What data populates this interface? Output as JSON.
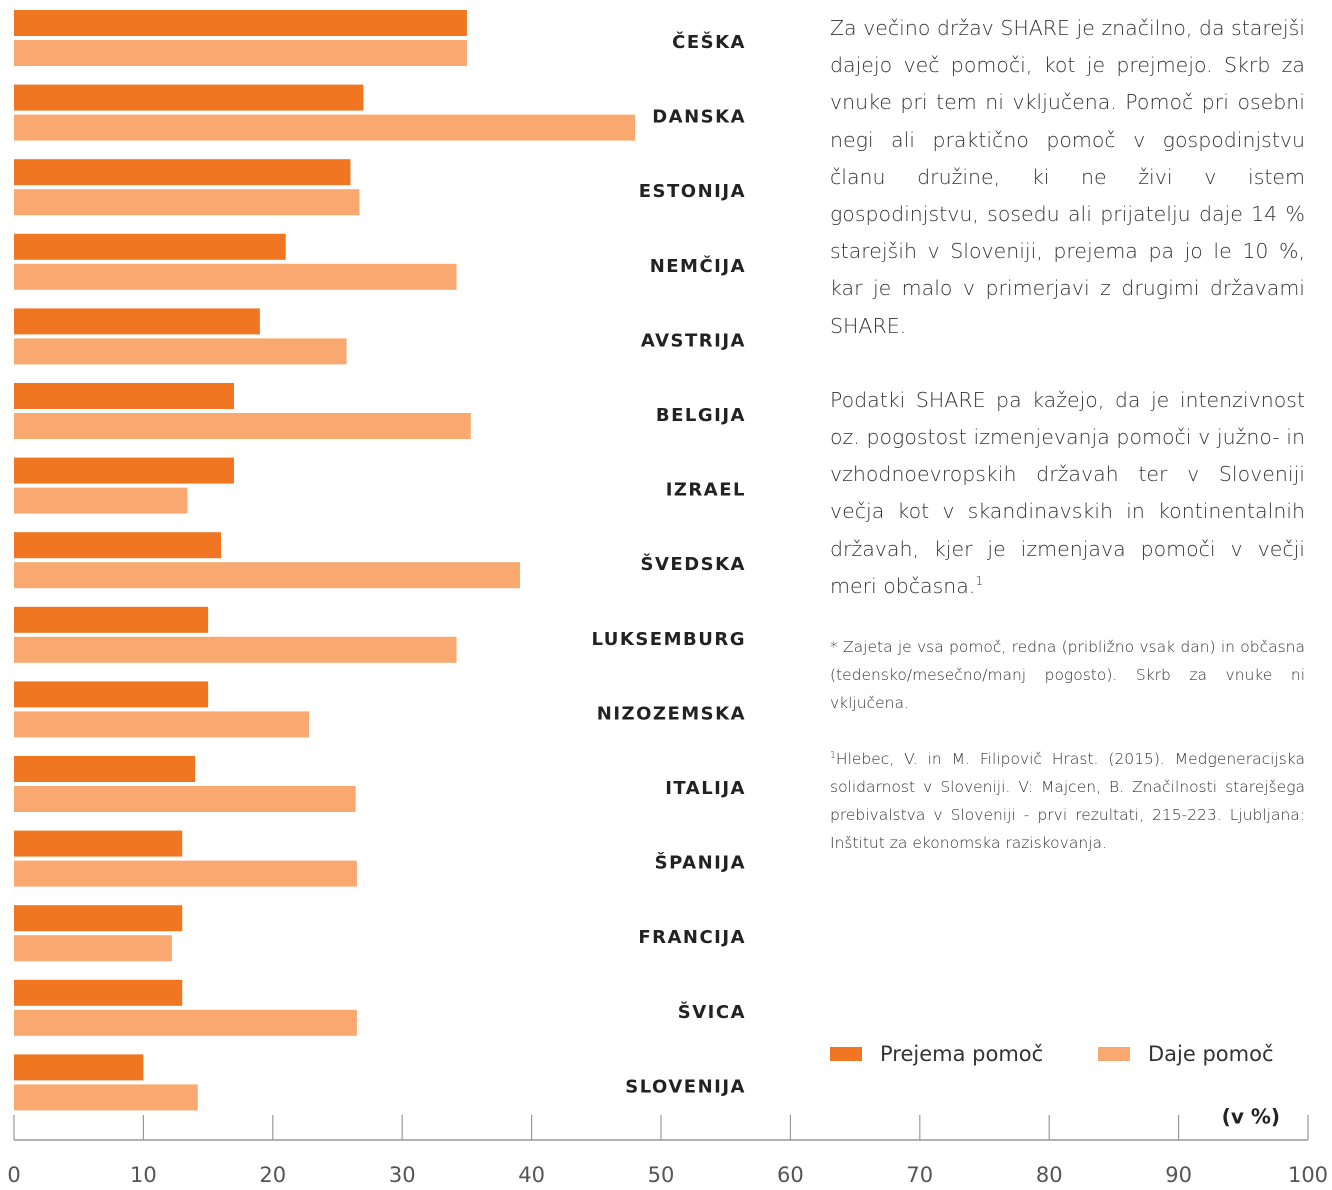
{
  "chart_data": {
    "type": "barh",
    "categories": [
      "ČEŠKA",
      "DANSKA",
      "ESTONIJA",
      "NEMČIJA",
      "AVSTRIJA",
      "BELGIJA",
      "IZRAEL",
      "ŠVEDSKA",
      "LUKSEMBURG",
      "NIZOZEMSKA",
      "ITALIJA",
      "ŠPANIJA",
      "FRANCIJA",
      "ŠVICA",
      "SLOVENIJA"
    ],
    "series": [
      {
        "name": "Prejema pomoč",
        "color": "#f07622",
        "values": [
          35,
          27,
          26,
          21,
          19,
          17,
          17,
          16,
          15,
          15,
          14,
          13,
          13,
          13,
          10
        ]
      },
      {
        "name": "Daje pomoč",
        "color": "#f9a86f",
        "values": [
          35,
          48,
          26.7,
          34.2,
          25.7,
          35.3,
          13.4,
          39.1,
          34.2,
          22.8,
          26.4,
          26.5,
          12.2,
          26.5,
          14.2
        ]
      }
    ],
    "xlim": [
      0,
      100
    ],
    "xticks": [
      0,
      10,
      20,
      30,
      40,
      50,
      60,
      70,
      80,
      90,
      100
    ],
    "xlabel": "(v %)"
  },
  "text": {
    "paragraphs": [
      "Za večino držav SHARE je značilno, da starejši dajejo več pomoči, kot je prejmejo. Skrb za vnuke pri tem ni vključena. Pomoč pri osebni negi ali praktično pomoč v gospodinjstvu članu družine, ki ne živi v istem gospodinjstvu, sosedu ali prijatelju daje 14 % starejših v Sloveniji, prejema pa jo le 10 %, kar je malo v primerjavi z drugimi državami SHARE.",
      "Podatki SHARE pa kažejo, da je intenziv­nost oz. pogostost izmenjevanja pomoči v južno- in vzhodnoevropskih državah ter v Sloveniji večja kot v skandinavskih in kontinentalnih državah, kjer je izmenjava pomoči v večji meri občasna."
    ],
    "note_ref": "1",
    "footnote": "* Zajeta je vsa pomoč, redna (približno vsak dan) in občasna (tedensko/mesečno/manj pogosto). Skrb za vnuke ni vključena.",
    "reference": {
      "marker": "1",
      "text": "Hlebec, V. in M. Filipovič Hrast. (2015). Medgener­acijska solidarnost v Sloveniji. V: Majcen, B. Značilno­sti starejšega prebivalstva v Sloveniji - prvi rezultati, 215-223. Ljubljana: Inštitut za ekonomska razisko­vanja."
    }
  }
}
